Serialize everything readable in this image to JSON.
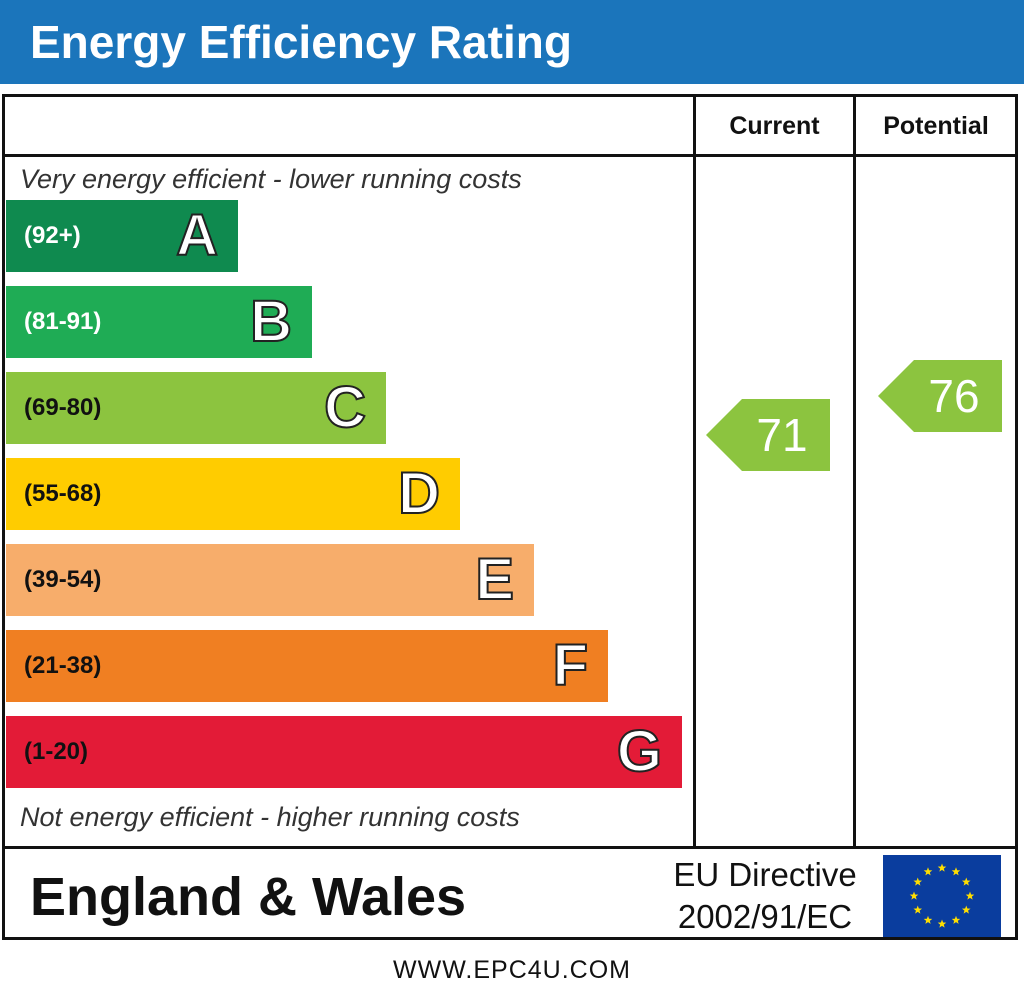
{
  "header": {
    "title": "Energy Efficiency Rating"
  },
  "columns": {
    "current": "Current",
    "potential": "Potential"
  },
  "notes": {
    "top": "Very energy efficient - lower running costs",
    "bottom": "Not energy efficient - higher running costs"
  },
  "chart_data": {
    "type": "bar",
    "title": "Energy Efficiency Rating",
    "categories": [
      "A",
      "B",
      "C",
      "D",
      "E",
      "F",
      "G"
    ],
    "ranges": [
      "(92+)",
      "(81-91)",
      "(69-80)",
      "(55-68)",
      "(39-54)",
      "(21-38)",
      "(1-20)"
    ],
    "colors": [
      "#0f8a4f",
      "#1fac55",
      "#8cc43f",
      "#ffcc00",
      "#f7ad6b",
      "#f07f22",
      "#e31b37"
    ],
    "range_text_colors": [
      "#ffffff",
      "#ffffff",
      "#111111",
      "#111111",
      "#111111",
      "#111111",
      "#111111"
    ],
    "ratings": {
      "current": {
        "value": 71,
        "band": "C",
        "color": "#8cc43f"
      },
      "potential": {
        "value": 76,
        "band": "C",
        "color": "#8cc43f"
      }
    }
  },
  "footer": {
    "region": "England & Wales",
    "directive_line1": "EU Directive",
    "directive_line2": "2002/91/EC",
    "website": "WWW.EPC4U.COM"
  },
  "icons": {
    "flag": "eu-flag-icon"
  }
}
